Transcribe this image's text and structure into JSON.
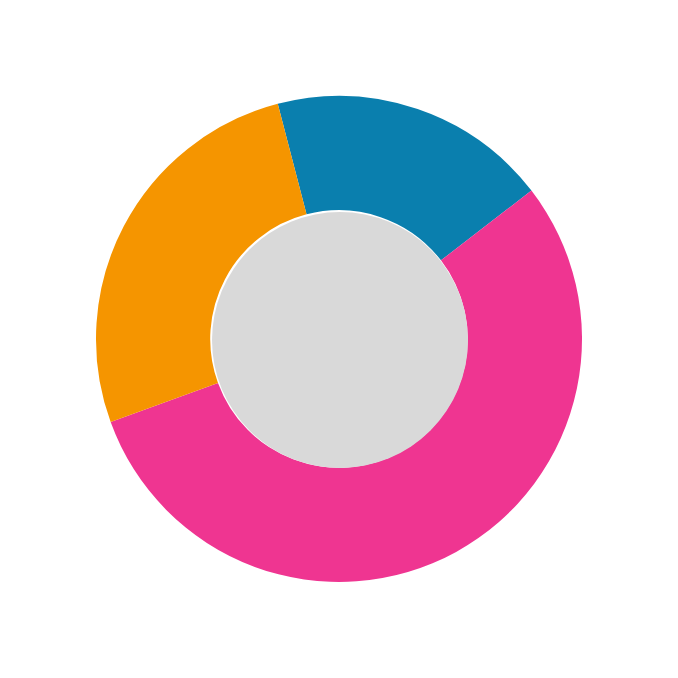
{
  "chart_data": {
    "type": "donut",
    "categories": [
      null,
      null,
      null
    ],
    "values": [
      18.6,
      54.9,
      26.5
    ],
    "colors": [
      "#0a7fae",
      "#ef3591",
      "#f59500"
    ]
  }
}
